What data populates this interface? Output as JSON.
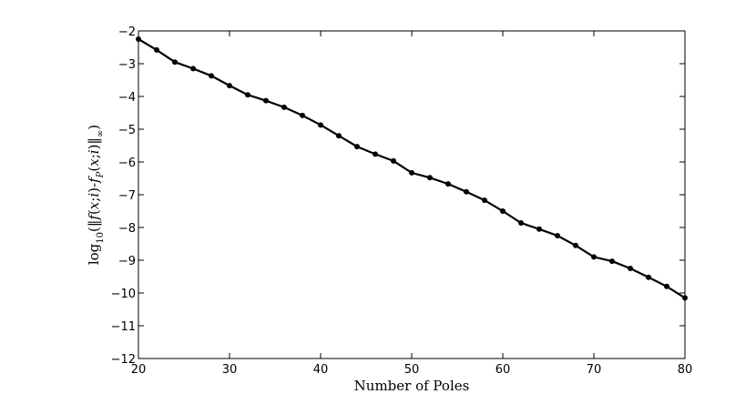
{
  "chart_data": {
    "type": "line",
    "title": "",
    "xlabel": "Number of Poles",
    "ylabel": "log10(||f(x;i)-fP(x;i)||∞)",
    "xlim": [
      20,
      80
    ],
    "ylim": [
      -12,
      -2
    ],
    "xticks": [
      20,
      30,
      40,
      50,
      60,
      70,
      80
    ],
    "yticks": [
      -2,
      -3,
      -4,
      -5,
      -6,
      -7,
      -8,
      -9,
      -10,
      -11,
      -12
    ],
    "xtick_labels": [
      "20",
      "30",
      "40",
      "50",
      "60",
      "70",
      "80"
    ],
    "ytick_labels": [
      "−2",
      "−3",
      "−4",
      "−5",
      "−6",
      "−7",
      "−8",
      "−9",
      "−10",
      "−11",
      "−12"
    ],
    "grid": false,
    "marker": "circle",
    "line_color": "#000000",
    "series": [
      {
        "x": [
          20,
          22,
          24,
          26,
          28,
          30,
          32,
          34,
          36,
          38,
          40,
          42,
          44,
          46,
          48,
          50,
          52,
          54,
          56,
          58,
          60,
          62,
          64,
          66,
          68,
          70,
          72,
          74,
          76,
          78,
          80
        ],
        "y": [
          -2.25,
          -2.58,
          -2.95,
          -3.15,
          -3.37,
          -3.67,
          -3.95,
          -4.13,
          -4.33,
          -4.58,
          -4.87,
          -5.2,
          -5.53,
          -5.76,
          -5.97,
          -6.33,
          -6.48,
          -6.67,
          -6.91,
          -7.17,
          -7.5,
          -7.86,
          -8.05,
          -8.25,
          -8.55,
          -8.9,
          -9.03,
          -9.25,
          -9.52,
          -9.8,
          -10.15
        ]
      }
    ]
  }
}
